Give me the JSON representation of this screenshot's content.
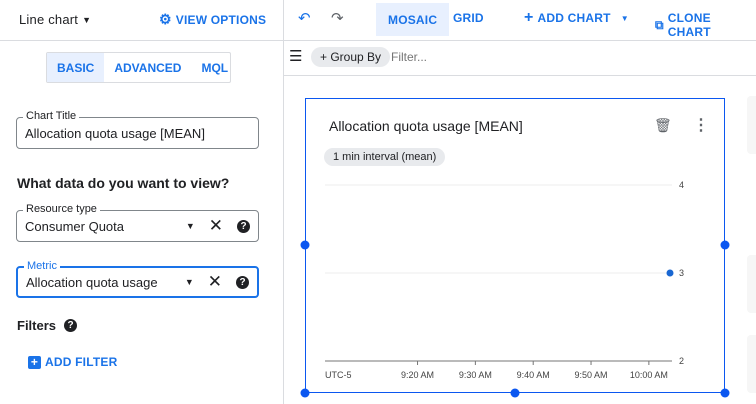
{
  "left_panel": {
    "chart_type": "Line chart",
    "view_options": "VIEW OPTIONS",
    "tabs": [
      {
        "label": "BASIC",
        "active": true
      },
      {
        "label": "ADVANCED",
        "active": false
      },
      {
        "label": "MQL",
        "active": false
      }
    ],
    "chart_title": {
      "label": "Chart Title",
      "value": "Allocation quota usage [MEAN]"
    },
    "question": "What data do you want to view?",
    "resource_type": {
      "label": "Resource type",
      "value": "Consumer Quota"
    },
    "metric": {
      "label": "Metric",
      "value": "Allocation quota usage"
    },
    "filters_label": "Filters",
    "add_filter": "ADD FILTER"
  },
  "toolbar": {
    "mosaic": "MOSAIC",
    "grid": "GRID",
    "add_chart": "ADD CHART",
    "clone_chart": "CLONE CHART",
    "group_by": "+ Group By",
    "filter_placeholder": "Filter..."
  },
  "chart_card": {
    "title": "Allocation quota usage [MEAN]",
    "interval_chip": "1 min interval (mean)"
  },
  "colors": {
    "accent": "#1a73e8",
    "selection": "#0b57f0",
    "series": "#1967d2"
  },
  "chart_data": {
    "type": "scatter",
    "timezone_label": "UTC-5",
    "x_ticks": [
      "9:20 AM",
      "9:30 AM",
      "9:40 AM",
      "9:50 AM",
      "10:00 AM"
    ],
    "y_ticks": [
      "2",
      "3",
      "4"
    ],
    "xlim": [
      "9:04 AM",
      "10:04 AM"
    ],
    "ylim": [
      2,
      4
    ],
    "y_axis_side": "right",
    "grid": true,
    "points": [
      {
        "x": "10:04 AM",
        "y": 3
      }
    ]
  }
}
